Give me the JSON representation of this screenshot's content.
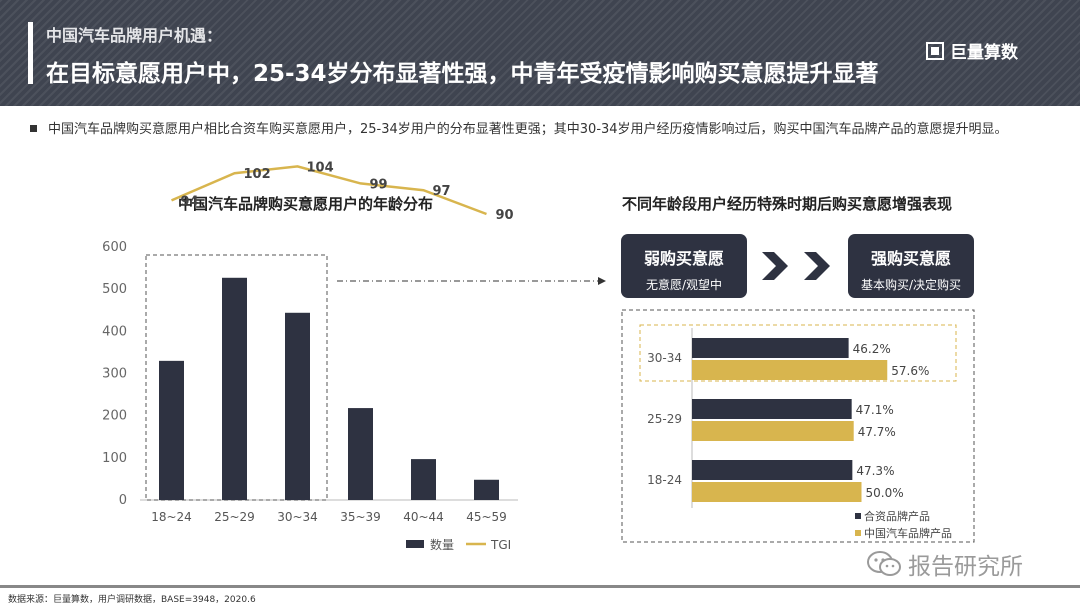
{
  "header": {
    "eyebrow": "中国汽车品牌用户机遇：",
    "headline": "在目标意愿用户中，25-34岁分布显著性强，中青年受疫情影响购买意愿提升显著",
    "logo_text": "巨量算数",
    "logo_icon": "brand-mark-icon"
  },
  "summary": "中国汽车品牌购买意愿用户相比合资车购买意愿用户，25-34岁用户的分布显著性更强；其中30-34岁用户经历疫情影响过后，购买中国汽车品牌产品的意愿提升明显。",
  "flow": {
    "title": "不同年龄段用户经历特殊时期后购买意愿增强表现",
    "from_main": "弱购买意愿",
    "from_sub": "无意愿/观望中",
    "to_main": "强购买意愿",
    "to_sub": "基本购买/决定购买",
    "arrow_icon": "chevron-right-icon"
  },
  "chart_data": [
    {
      "type": "bar",
      "title": "中国汽车品牌购买意愿用户的年龄分布",
      "categories": [
        "18~24",
        "25~29",
        "30~34",
        "35~39",
        "40~44",
        "45~59"
      ],
      "series": [
        {
          "name": "数量",
          "type": "bar",
          "values": [
            330,
            527,
            444,
            218,
            97,
            48
          ]
        },
        {
          "name": "TGI",
          "type": "line",
          "values": [
            94,
            102,
            104,
            99,
            97,
            90
          ]
        }
      ],
      "ylim": [
        0,
        600
      ],
      "yticks": [
        0,
        100,
        200,
        300,
        400,
        500,
        600
      ],
      "legend": "bottom-right",
      "highlight_categories": [
        "18~24",
        "25~29",
        "30~34"
      ],
      "colors": {
        "bar": "#2e3241",
        "line": "#d8b54e"
      }
    },
    {
      "type": "bar",
      "orientation": "horizontal",
      "title": "不同年龄段用户经历特殊时期后购买意愿增强表现",
      "categories": [
        "30-34",
        "25-29",
        "18-24"
      ],
      "series": [
        {
          "name": "合资品牌产品",
          "values": [
            46.2,
            47.1,
            47.3
          ]
        },
        {
          "name": "中国汽车品牌产品",
          "values": [
            57.6,
            47.7,
            50.0
          ]
        }
      ],
      "value_labels": [
        [
          "46.2%",
          "47.1%",
          "47.3%"
        ],
        [
          "57.6%",
          "47.7%",
          "50.0%"
        ]
      ],
      "highlight_categories": [
        "30-34"
      ],
      "legend": "bottom-right",
      "colors": {
        "合资品牌产品": "#2e3241",
        "中国汽车品牌产品": "#d8b54e"
      }
    }
  ],
  "footer": {
    "source": "数据来源：巨量算数，用户调研数据，BASE=3948，2020.6",
    "watermark": "报告研究所",
    "watermark_icon": "wechat-icon"
  }
}
